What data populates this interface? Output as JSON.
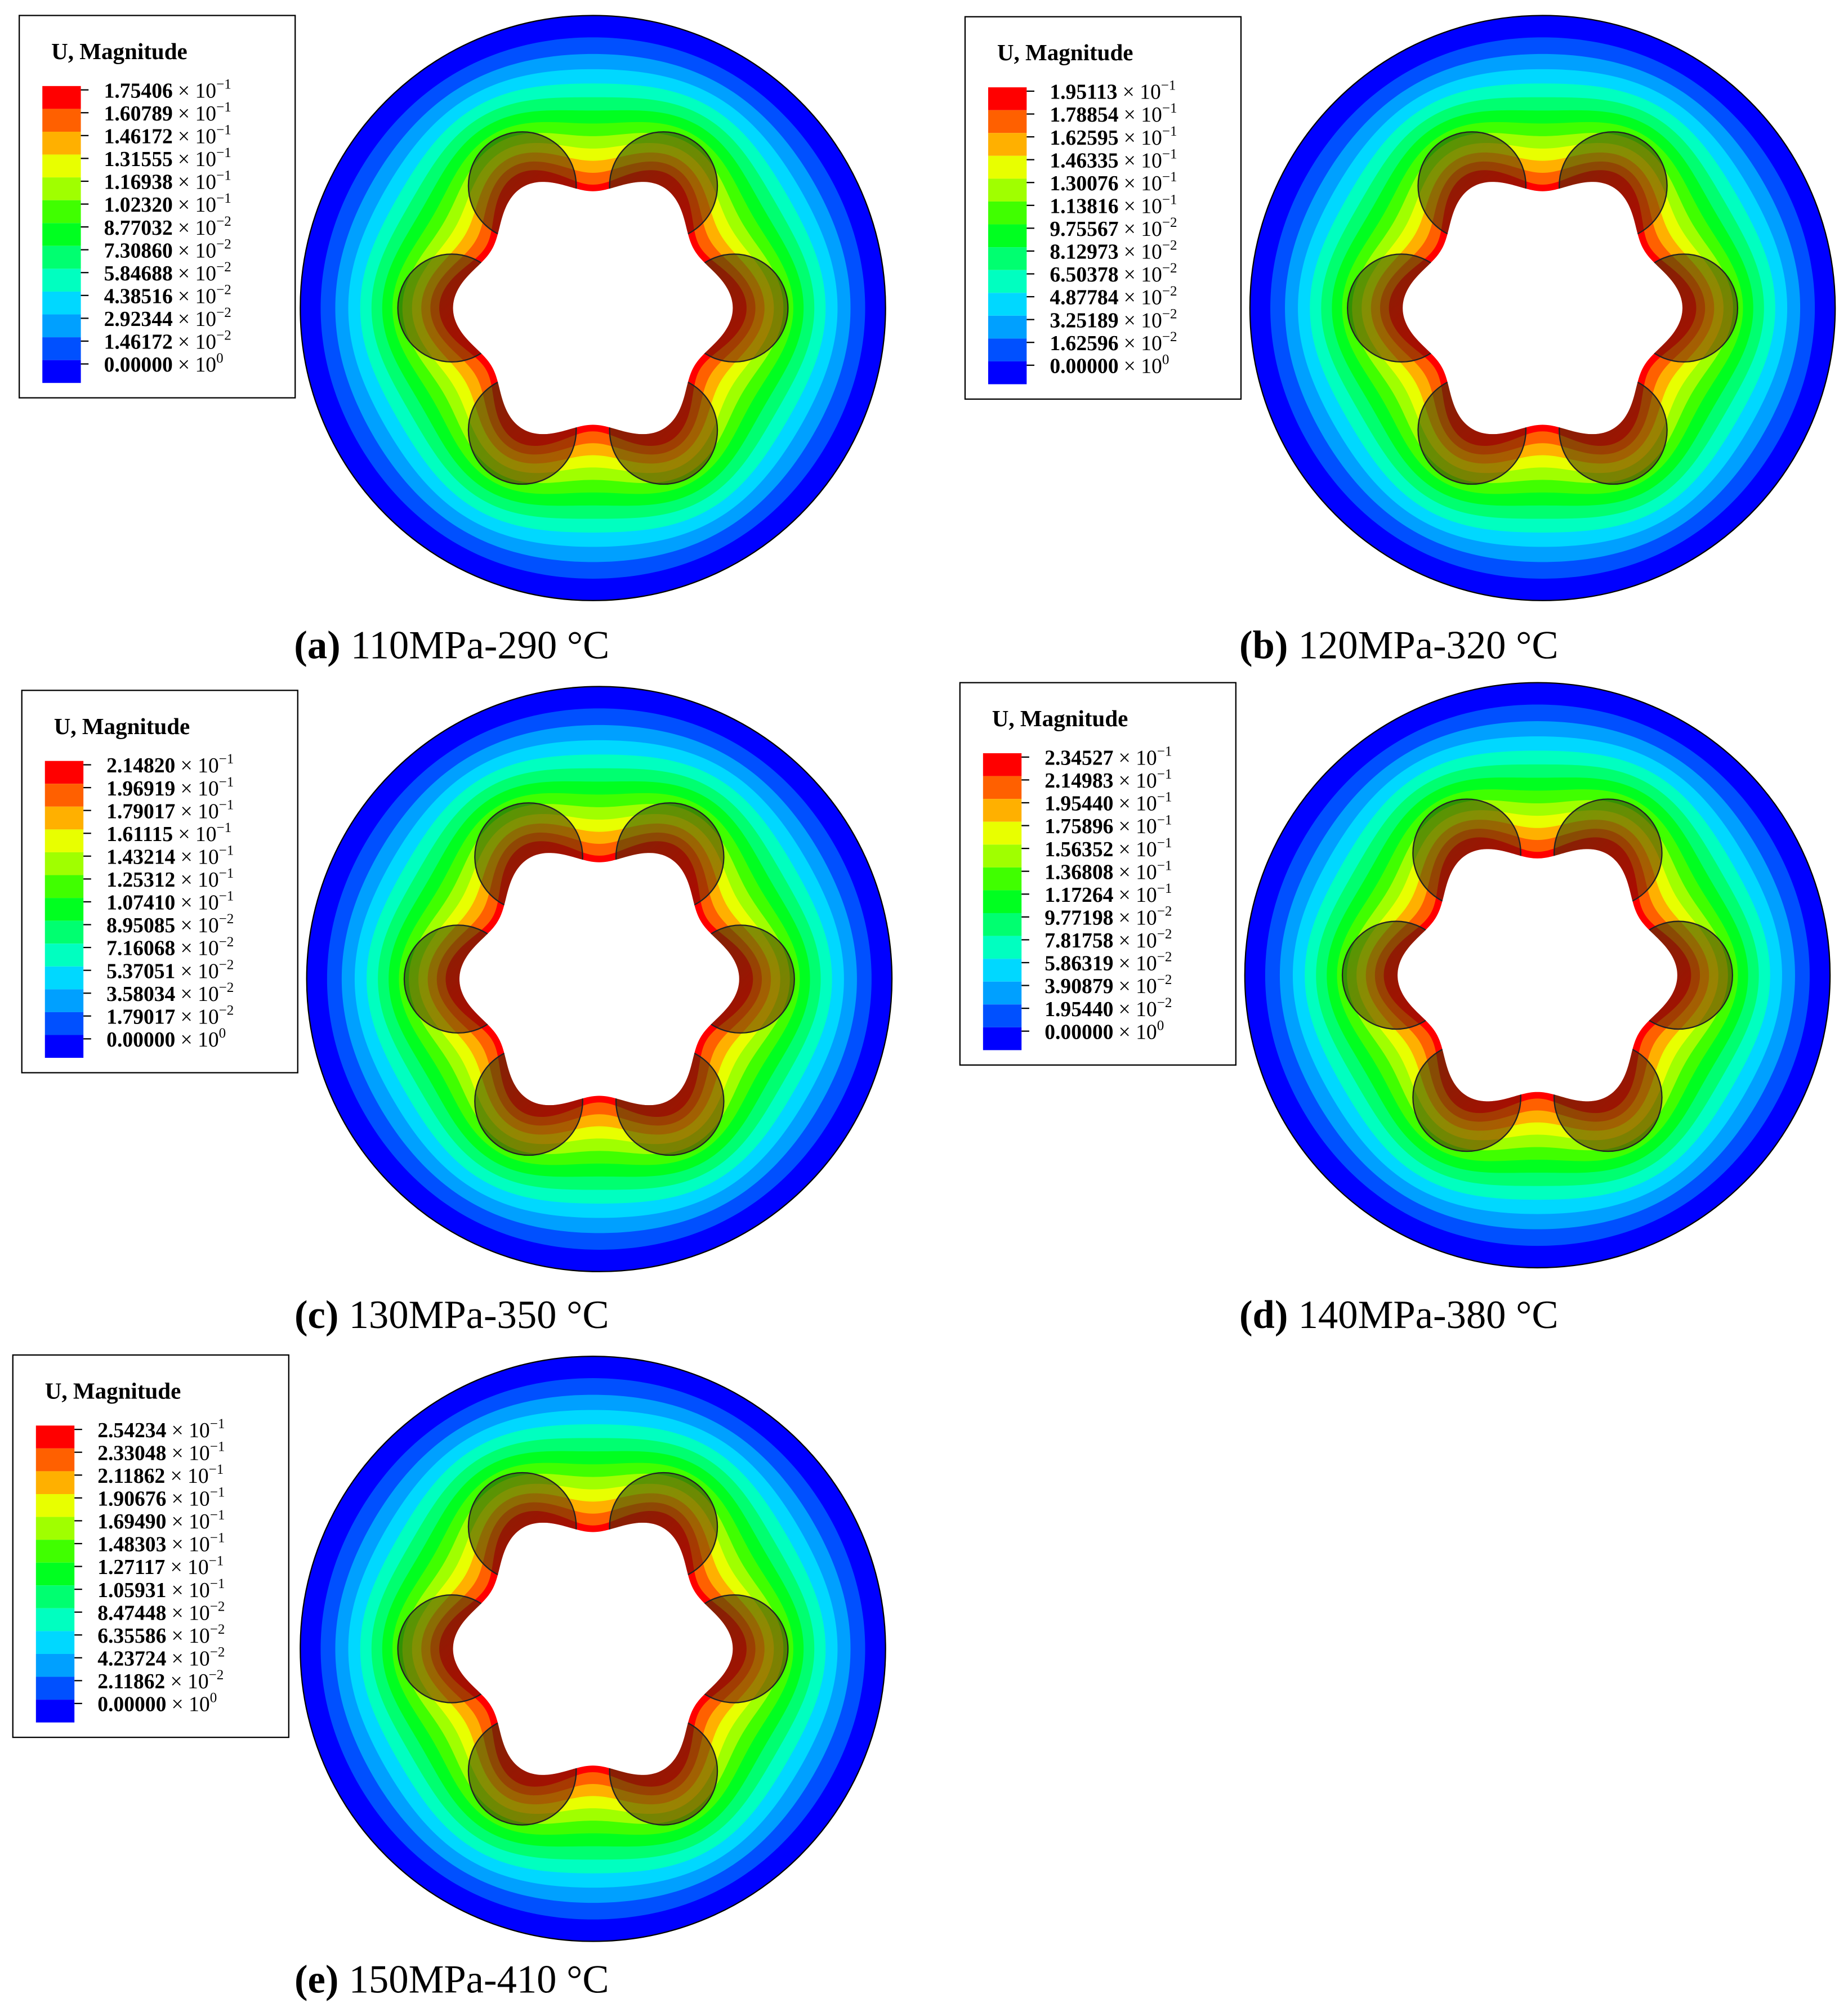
{
  "multiplier": "× 10",
  "colormap": [
    "#0000ff",
    "#0050ff",
    "#00a0ff",
    "#00d8ff",
    "#00ffc0",
    "#00ff70",
    "#00ff20",
    "#40ff00",
    "#a0ff00",
    "#e8ff00",
    "#ffb000",
    "#ff6000",
    "#ff0000"
  ],
  "panels": [
    {
      "legend": {
        "title": "U, Magnitude",
        "values": [
          [
            "1.75406",
            "−1"
          ],
          [
            "1.60789",
            "−1"
          ],
          [
            "1.46172",
            "−1"
          ],
          [
            "1.31555",
            "−1"
          ],
          [
            "1.16938",
            "−1"
          ],
          [
            "1.02320",
            "−1"
          ],
          [
            "8.77032",
            "−2"
          ],
          [
            "7.30860",
            "−2"
          ],
          [
            "5.84688",
            "−2"
          ],
          [
            "4.38516",
            "−2"
          ],
          [
            "2.92344",
            "−2"
          ],
          [
            "1.46172",
            "−2"
          ],
          [
            "0.00000",
            "0"
          ]
        ]
      },
      "caption": {
        "label": "(a)",
        "text": "110MPa-290 °C"
      }
    },
    {
      "legend": {
        "title": "U, Magnitude",
        "values": [
          [
            "1.95113",
            "−1"
          ],
          [
            "1.78854",
            "−1"
          ],
          [
            "1.62595",
            "−1"
          ],
          [
            "1.46335",
            "−1"
          ],
          [
            "1.30076",
            "−1"
          ],
          [
            "1.13816",
            "−1"
          ],
          [
            "9.75567",
            "−2"
          ],
          [
            "8.12973",
            "−2"
          ],
          [
            "6.50378",
            "−2"
          ],
          [
            "4.87784",
            "−2"
          ],
          [
            "3.25189",
            "−2"
          ],
          [
            "1.62596",
            "−2"
          ],
          [
            "0.00000",
            "0"
          ]
        ]
      },
      "caption": {
        "label": "(b)",
        "text": "120MPa-320 °C"
      }
    },
    {
      "legend": {
        "title": "U, Magnitude",
        "values": [
          [
            "2.14820",
            "−1"
          ],
          [
            "1.96919",
            "−1"
          ],
          [
            "1.79017",
            "−1"
          ],
          [
            "1.61115",
            "−1"
          ],
          [
            "1.43214",
            "−1"
          ],
          [
            "1.25312",
            "−1"
          ],
          [
            "1.07410",
            "−1"
          ],
          [
            "8.95085",
            "−2"
          ],
          [
            "7.16068",
            "−2"
          ],
          [
            "5.37051",
            "−2"
          ],
          [
            "3.58034",
            "−2"
          ],
          [
            "1.79017",
            "−2"
          ],
          [
            "0.00000",
            "0"
          ]
        ]
      },
      "caption": {
        "label": "(c)",
        "text": "130MPa-350 °C"
      }
    },
    {
      "legend": {
        "title": "U, Magnitude",
        "values": [
          [
            "2.34527",
            "−1"
          ],
          [
            "2.14983",
            "−1"
          ],
          [
            "1.95440",
            "−1"
          ],
          [
            "1.75896",
            "−1"
          ],
          [
            "1.56352",
            "−1"
          ],
          [
            "1.36808",
            "−1"
          ],
          [
            "1.17264",
            "−1"
          ],
          [
            "9.77198",
            "−2"
          ],
          [
            "7.81758",
            "−2"
          ],
          [
            "5.86319",
            "−2"
          ],
          [
            "3.90879",
            "−2"
          ],
          [
            "1.95440",
            "−2"
          ],
          [
            "0.00000",
            "0"
          ]
        ]
      },
      "caption": {
        "label": "(d)",
        "text": "140MPa-380 °C"
      }
    },
    {
      "legend": {
        "title": "U, Magnitude",
        "values": [
          [
            "2.54234",
            "−1"
          ],
          [
            "2.33048",
            "−1"
          ],
          [
            "2.11862",
            "−1"
          ],
          [
            "1.90676",
            "−1"
          ],
          [
            "1.69490",
            "−1"
          ],
          [
            "1.48303",
            "−1"
          ],
          [
            "1.27117",
            "−1"
          ],
          [
            "1.05931",
            "−1"
          ],
          [
            "8.47448",
            "−2"
          ],
          [
            "6.35586",
            "−2"
          ],
          [
            "4.23724",
            "−2"
          ],
          [
            "2.11862",
            "−2"
          ],
          [
            "0.00000",
            "0"
          ]
        ]
      },
      "caption": {
        "label": "(e)",
        "text": "150MPa-410 °C"
      }
    }
  ]
}
